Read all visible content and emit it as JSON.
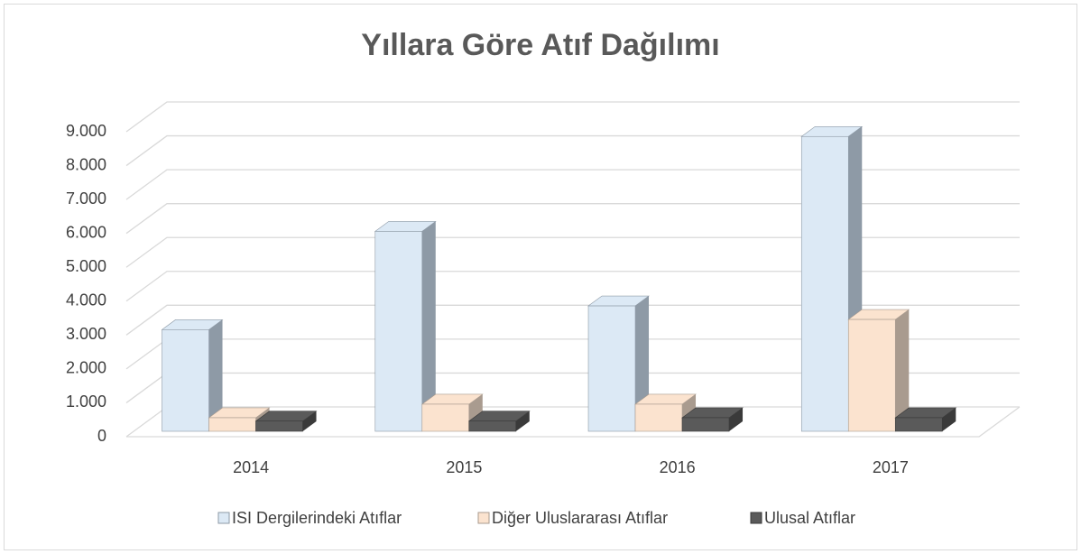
{
  "chart_data": {
    "type": "bar3d",
    "title": "Yıllara Göre Atıf Dağılımı",
    "categories": [
      "2014",
      "2015",
      "2016",
      "2017"
    ],
    "series": [
      {
        "name": "ISI Dergilerindeki Atıflar",
        "color": "#dce9f5",
        "side": "#8e9aa6",
        "values": [
          3000,
          5900,
          3700,
          8700
        ]
      },
      {
        "name": "Diğer Uluslararası Atıflar",
        "color": "#fbe3cf",
        "side": "#a99b8f",
        "values": [
          400,
          800,
          800,
          3300
        ]
      },
      {
        "name": "Ulusal Atıflar",
        "color": "#5a5a5a",
        "side": "#3a3a3a",
        "values": [
          300,
          300,
          400,
          400
        ]
      }
    ],
    "ylim": [
      0,
      9000
    ],
    "yticks": [
      0,
      {
        "value": 1000,
        "label": "1.000"
      },
      {
        "value": 2000,
        "label": "2.000"
      },
      {
        "value": 3000,
        "label": "3.000"
      },
      {
        "value": 4000,
        "label": "4.000"
      },
      {
        "value": 5000,
        "label": "5.000"
      },
      {
        "value": 6000,
        "label": "6.000"
      },
      {
        "value": 7000,
        "label": "7.000"
      },
      {
        "value": 8000,
        "label": "8.000"
      },
      {
        "value": 9000,
        "label": "9.000"
      }
    ],
    "grid": true,
    "legend": "bottom"
  }
}
